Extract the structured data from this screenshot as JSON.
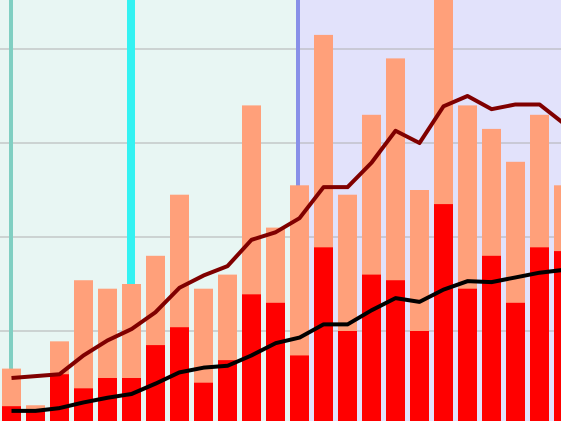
{
  "chart_data": {
    "type": "bar",
    "categories": [
      null,
      null,
      null,
      null,
      null,
      null,
      null,
      null,
      null,
      null,
      null,
      null,
      null,
      null,
      null,
      null,
      null,
      null,
      null,
      null,
      null,
      null,
      null,
      null
    ],
    "series": [
      {
        "type": "bar",
        "color": "#ffa07a",
        "values": [
          0.6,
          0.21,
          0.89,
          1.54,
          1.45,
          1.5,
          1.8,
          2.45,
          1.45,
          1.6,
          3.4,
          2.1,
          2.55,
          4.15,
          2.45,
          3.3,
          3.9,
          2.5,
          4.6,
          3.4,
          3.15,
          2.8,
          3.3,
          2.55
        ]
      },
      {
        "type": "bar",
        "color": "#ff0000",
        "values": [
          0.2,
          0.16,
          0.54,
          0.39,
          0.5,
          0.5,
          0.85,
          1.04,
          0.45,
          0.69,
          1.39,
          1.3,
          0.74,
          1.89,
          1.0,
          1.6,
          1.54,
          1.0,
          2.35,
          1.45,
          1.8,
          1.3,
          1.89,
          1.85
        ]
      },
      {
        "type": "line",
        "color": "#800000",
        "values": [
          0.5,
          0.52,
          0.54,
          0.74,
          0.9,
          1.02,
          1.2,
          1.46,
          1.59,
          1.69,
          1.97,
          2.05,
          2.2,
          2.53,
          2.53,
          2.79,
          3.13,
          3.0,
          3.39,
          3.5,
          3.36,
          3.41,
          3.41,
          3.21
        ]
      },
      {
        "type": "line",
        "color": "#000000",
        "values": [
          0.15,
          0.15,
          0.18,
          0.24,
          0.29,
          0.33,
          0.44,
          0.56,
          0.61,
          0.63,
          0.74,
          0.87,
          0.93,
          1.07,
          1.07,
          1.22,
          1.35,
          1.31,
          1.44,
          1.53,
          1.52,
          1.57,
          1.62,
          1.65
        ]
      }
    ],
    "ylim": [
      0,
      4.5
    ],
    "yticks": [
      1,
      2,
      3,
      4
    ],
    "grid": true
  }
}
